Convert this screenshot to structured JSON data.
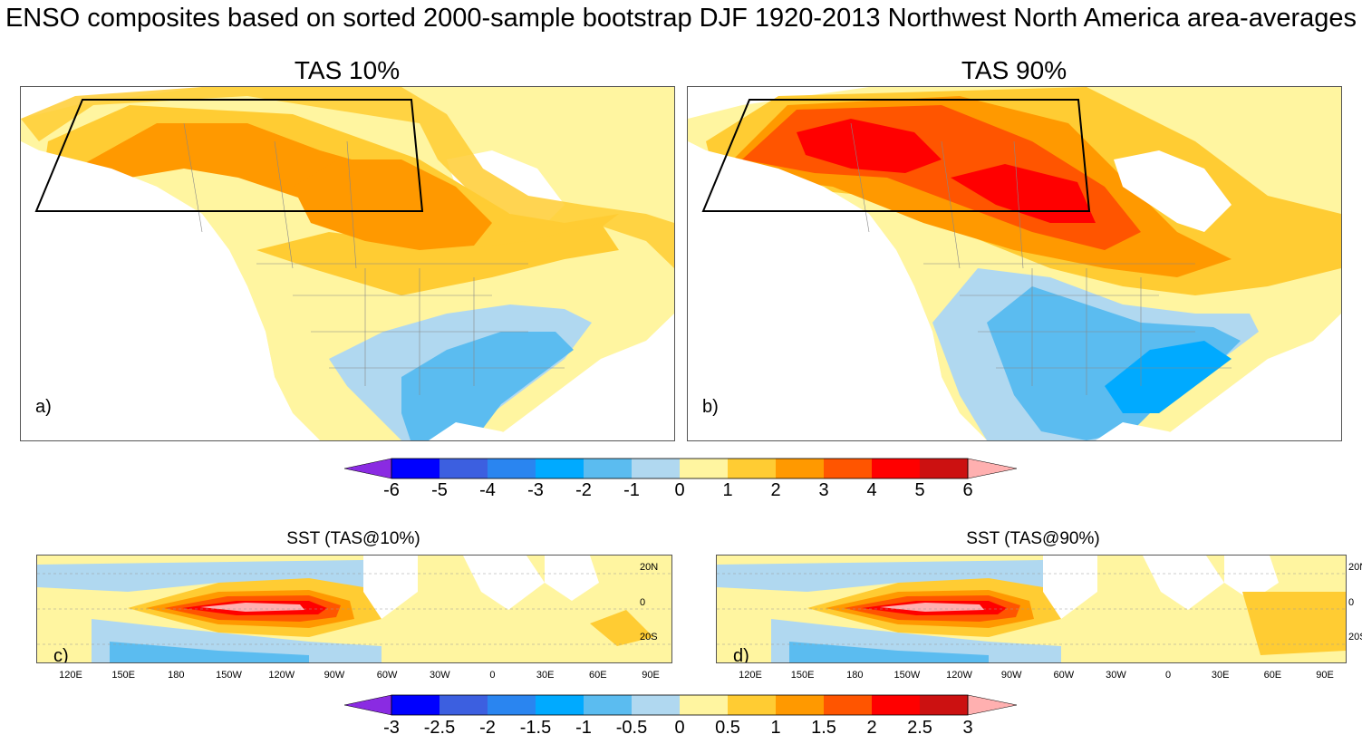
{
  "title": "ENSO composites based on sorted 2000-sample bootstrap DJF 1920-2013 Northwest North America area-averages",
  "panels": {
    "a": {
      "title": "TAS 10%",
      "label": "a)"
    },
    "b": {
      "title": "TAS 90%",
      "label": "b)"
    },
    "c": {
      "title": "SST (TAS@10%)",
      "label": "c)"
    },
    "d": {
      "title": "SST (TAS@90%)",
      "label": "d)"
    }
  },
  "colorbar_tas": {
    "labels": [
      "-6",
      "-5",
      "-4",
      "-3",
      "-2",
      "-1",
      "0",
      "1",
      "2",
      "3",
      "4",
      "5",
      "6"
    ],
    "colors": [
      "#8a2be2",
      "#0000ff",
      "#3c5fe0",
      "#2a85f0",
      "#00aaff",
      "#5bbcf0",
      "#b0d8f0",
      "#fff5a0",
      "#ffcc33",
      "#ff9900",
      "#ff5500",
      "#ff0000",
      "#cc1111",
      "#ffb0b0"
    ]
  },
  "colorbar_sst": {
    "labels": [
      "-3",
      "-2.5",
      "-2",
      "-1.5",
      "-1",
      "-0.5",
      "0",
      "0.5",
      "1",
      "1.5",
      "2",
      "2.5",
      "3"
    ]
  },
  "sst_axes": {
    "lon_labels": [
      "120E",
      "150E",
      "180",
      "150W",
      "120W",
      "90W",
      "60W",
      "30W",
      "0",
      "30E",
      "60E",
      "90E"
    ],
    "lat_labels": [
      "20N",
      "0",
      "20S"
    ]
  }
}
